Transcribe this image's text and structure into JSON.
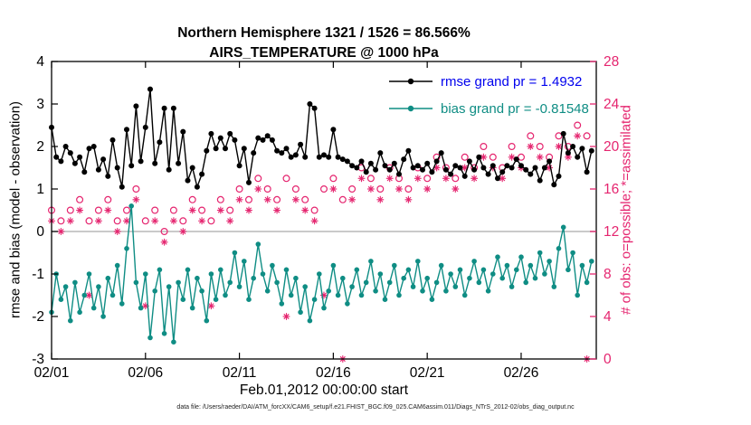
{
  "figure": {
    "title_line1": "Northern Hemisphere 1321 / 1526 = 86.566%",
    "title_line2": "AIRS_TEMPERATURE @ 1000 hPa",
    "xlabel": "Feb.01,2012 00:00:00 start",
    "ylabel_left": "rmse and bias (model - observation)",
    "ylabel_right": "# of obs: o=possible; *=assimilated",
    "caption": "data file: /Users/raeder/DAI/ATM_forcXX/CAM6_setup/f.e21.FHIST_BGC.f09_025.CAM6assim.011/Diags_NTrS_2012-02/obs_diag_output.nc"
  },
  "legend": {
    "rmse_label": "rmse grand pr = 1.4932",
    "bias_label": "bias grand pr = -0.81548"
  },
  "colors": {
    "rmse": "#000000",
    "bias": "#0f8d84",
    "obs": "#e5256f",
    "legend_rmse_text": "#0000ee",
    "zero_line": "#b8b8b8",
    "axis": "#000000"
  },
  "chart_data": {
    "type": "line",
    "title": "Northern Hemisphere 1321 / 1526 = 86.566%  |  AIRS_TEMPERATURE @ 1000 hPa",
    "xlabel": "Feb.01,2012 00:00:00 start",
    "ylabel_left": "rmse and bias (model - observation)",
    "ylabel_right": "# of obs: o=possible; *=assimilated",
    "legend_position": "top-right-inside",
    "grid": "zero-line-only",
    "x_axis": {
      "lim": [
        1,
        30
      ],
      "tick_values": [
        1,
        6,
        11,
        16,
        21,
        26
      ],
      "tick_labels": [
        "02/01",
        "02/06",
        "02/11",
        "02/16",
        "02/21",
        "02/26"
      ]
    },
    "y_axis_left": {
      "lim": [
        -3,
        4
      ],
      "ticks": [
        -3,
        -2,
        -1,
        0,
        1,
        2,
        3,
        4
      ]
    },
    "y_axis_right": {
      "lim": [
        0,
        28
      ],
      "ticks": [
        0,
        4,
        8,
        12,
        16,
        20,
        24,
        28
      ]
    },
    "zero_line": 0,
    "series": [
      {
        "name": "rmse",
        "axis": "left",
        "type": "line+marker",
        "marker": "filled-circle",
        "color": "#000000",
        "grand_mean": 1.4932,
        "x_start": 1,
        "x_step": 0.25,
        "values": [
          2.45,
          1.75,
          1.65,
          2.0,
          1.85,
          1.6,
          1.75,
          1.4,
          1.95,
          2.0,
          1.45,
          1.7,
          1.3,
          2.15,
          1.5,
          1.05,
          2.4,
          1.55,
          2.95,
          1.65,
          2.45,
          3.35,
          1.6,
          2.1,
          2.9,
          1.45,
          2.9,
          1.6,
          2.35,
          1.2,
          1.5,
          1.05,
          1.35,
          1.9,
          2.3,
          1.95,
          2.2,
          1.95,
          2.3,
          2.15,
          1.55,
          1.95,
          1.15,
          1.85,
          2.2,
          2.15,
          2.25,
          2.15,
          1.9,
          1.85,
          1.95,
          1.75,
          1.8,
          2.05,
          1.75,
          3.0,
          2.9,
          1.75,
          1.8,
          1.75,
          2.4,
          1.75,
          1.7,
          1.65,
          1.55,
          1.5,
          1.65,
          1.4,
          1.6,
          1.45,
          1.85,
          1.55,
          1.45,
          1.6,
          1.35,
          1.7,
          1.9,
          1.5,
          1.55,
          1.45,
          1.6,
          1.4,
          1.65,
          1.85,
          1.45,
          1.35,
          1.55,
          1.5,
          1.3,
          1.65,
          1.45,
          1.75,
          1.5,
          1.35,
          1.55,
          1.25,
          1.4,
          1.55,
          1.5,
          1.7,
          1.55,
          1.45,
          1.35,
          1.5,
          1.2,
          1.5,
          1.65,
          1.1,
          1.3,
          2.3,
          1.85,
          2.0,
          1.75,
          1.95,
          1.4,
          1.9
        ]
      },
      {
        "name": "bias",
        "axis": "left",
        "type": "line+marker",
        "marker": "filled-circle",
        "color": "#0f8d84",
        "grand_mean": -0.81548,
        "x_start": 1,
        "x_step": 0.25,
        "values": [
          -1.9,
          -1.0,
          -1.6,
          -1.3,
          -2.1,
          -1.2,
          -1.9,
          -1.5,
          -1.0,
          -1.8,
          -1.3,
          -2.0,
          -1.1,
          -1.5,
          -0.8,
          -1.7,
          -0.4,
          0.6,
          -1.2,
          -1.8,
          -1.0,
          -2.5,
          -1.4,
          -0.9,
          -2.4,
          -1.3,
          -2.6,
          -1.2,
          -1.6,
          -0.9,
          -1.8,
          -1.1,
          -1.4,
          -2.1,
          -1.0,
          -1.6,
          -0.9,
          -1.5,
          -1.2,
          -0.5,
          -1.3,
          -0.7,
          -1.6,
          -1.1,
          -0.3,
          -1.0,
          -1.4,
          -0.8,
          -1.2,
          -1.7,
          -0.9,
          -1.5,
          -1.1,
          -1.9,
          -1.3,
          -2.1,
          -1.6,
          -1.0,
          -1.8,
          -1.4,
          -0.8,
          -1.5,
          -1.1,
          -1.7,
          -1.3,
          -0.9,
          -1.5,
          -1.2,
          -0.7,
          -1.4,
          -1.0,
          -1.6,
          -1.2,
          -0.8,
          -1.5,
          -1.1,
          -0.9,
          -1.3,
          -0.7,
          -1.4,
          -1.1,
          -1.6,
          -1.2,
          -0.8,
          -1.4,
          -1.0,
          -1.3,
          -0.9,
          -1.5,
          -1.1,
          -0.7,
          -1.2,
          -0.9,
          -1.4,
          -1.0,
          -0.6,
          -1.1,
          -0.8,
          -1.3,
          -0.9,
          -0.6,
          -1.2,
          -0.8,
          -1.1,
          -0.5,
          -1.0,
          -0.7,
          -1.3,
          -0.4,
          0.1,
          -0.9,
          -0.5,
          -1.5,
          -0.8,
          -1.2,
          -0.7
        ]
      },
      {
        "name": "possible_obs",
        "axis": "right",
        "type": "scatter",
        "marker": "open-circle",
        "color": "#e5256f",
        "x_start": 1,
        "x_step": 0.5,
        "values": [
          14,
          13,
          14,
          15,
          13,
          14,
          15,
          13,
          14,
          16,
          13,
          14,
          12,
          14,
          13,
          15,
          14,
          13,
          15,
          14,
          16,
          15,
          17,
          16,
          15,
          17,
          16,
          15,
          14,
          16,
          17,
          15,
          16,
          18,
          17,
          16,
          18,
          17,
          16,
          18,
          17,
          19,
          18,
          17,
          19,
          18,
          20,
          19,
          18,
          20,
          19,
          21,
          20,
          19,
          21,
          20,
          22,
          21
        ]
      },
      {
        "name": "assimilated_obs",
        "axis": "right",
        "type": "scatter",
        "marker": "asterisk",
        "color": "#e5256f",
        "x_start": 1,
        "x_step": 0.5,
        "values": [
          13,
          12,
          13,
          14,
          6,
          13,
          14,
          12,
          13,
          15,
          5,
          13,
          11,
          13,
          12,
          14,
          13,
          5,
          14,
          13,
          15,
          14,
          16,
          15,
          14,
          4,
          15,
          14,
          13,
          6,
          16,
          0,
          15,
          17,
          16,
          15,
          17,
          16,
          15,
          17,
          16,
          18,
          17,
          16,
          18,
          17,
          19,
          18,
          17,
          19,
          18,
          20,
          19,
          18,
          20,
          19,
          21,
          0
        ]
      }
    ]
  }
}
